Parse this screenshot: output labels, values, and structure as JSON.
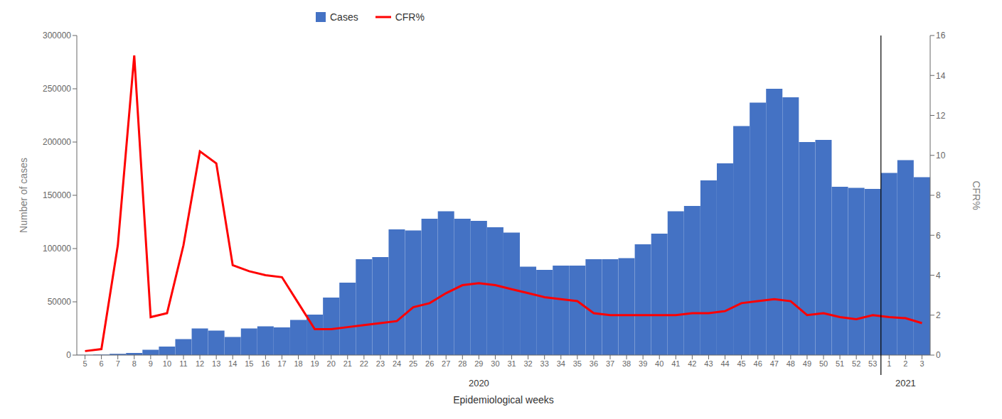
{
  "chart_data": {
    "type": "bar",
    "xlabel": "Epidemiological weeks",
    "ylabel": "Number of cases",
    "y2label": "CFR%",
    "annotations": [
      "2020",
      "2021"
    ],
    "categories": [
      "5",
      "6",
      "7",
      "8",
      "9",
      "10",
      "11",
      "12",
      "13",
      "14",
      "15",
      "16",
      "17",
      "18",
      "19",
      "20",
      "21",
      "22",
      "23",
      "24",
      "25",
      "26",
      "27",
      "28",
      "29",
      "30",
      "31",
      "32",
      "33",
      "34",
      "35",
      "36",
      "37",
      "38",
      "39",
      "40",
      "41",
      "42",
      "43",
      "44",
      "45",
      "46",
      "47",
      "48",
      "49",
      "50",
      "51",
      "52",
      "53",
      "1",
      "2",
      "3"
    ],
    "series": [
      {
        "name": "Cases",
        "type": "bar",
        "color": "#4472C4",
        "values": [
          200,
          500,
          1200,
          2000,
          5000,
          8000,
          15000,
          25000,
          23000,
          17000,
          25000,
          27000,
          26000,
          33000,
          38000,
          54000,
          68000,
          90000,
          92000,
          118000,
          117000,
          128000,
          135000,
          128000,
          126000,
          120000,
          115000,
          83000,
          80000,
          84000,
          84000,
          90000,
          90000,
          91000,
          104000,
          114000,
          135000,
          140000,
          164000,
          180000,
          215000,
          237000,
          250000,
          242000,
          200000,
          202000,
          158000,
          157000,
          156000,
          171000,
          183000,
          167000
        ]
      },
      {
        "name": "CFR%",
        "type": "line",
        "color": "#FF0000",
        "axis": "y2",
        "values": [
          0.2,
          0.3,
          5.5,
          15.0,
          1.9,
          2.1,
          5.5,
          10.2,
          9.6,
          4.5,
          4.2,
          4.0,
          3.9,
          2.6,
          1.3,
          1.3,
          1.4,
          1.5,
          1.6,
          1.7,
          2.4,
          2.6,
          3.1,
          3.5,
          3.6,
          3.5,
          3.3,
          3.1,
          2.9,
          2.8,
          2.7,
          2.1,
          2.0,
          2.0,
          2.0,
          2.0,
          2.0,
          2.1,
          2.1,
          2.2,
          2.6,
          2.7,
          2.8,
          2.7,
          2.0,
          2.1,
          1.9,
          1.8,
          2.0,
          1.9,
          1.85,
          1.6
        ]
      }
    ],
    "ylim": [
      0,
      300000
    ],
    "yticks": [
      0,
      50000,
      100000,
      150000,
      200000,
      250000,
      300000
    ],
    "y2lim": [
      0,
      16
    ],
    "y2ticks": [
      0,
      2,
      4,
      6,
      8,
      10,
      12,
      14,
      16
    ],
    "legend": "top",
    "grid": false
  }
}
